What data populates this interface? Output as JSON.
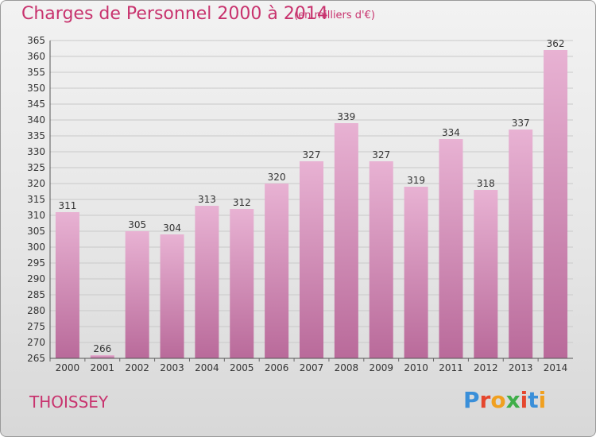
{
  "header": {
    "title": "Charges de Personnel 2000 à 2014",
    "subtitle": "(en milliers d'€)"
  },
  "footer": {
    "commune": "THOISSEY",
    "logo_text": "Proxiti",
    "logo_colors": [
      "#3a8fd9",
      "#e5462d",
      "#f0a020",
      "#3fae49",
      "#e5462d",
      "#3a8fd9",
      "#f0a020"
    ]
  },
  "colors": {
    "bar_light": "#e8b2d3",
    "bar_dark": "#b96a9a",
    "accent": "#c8336e"
  },
  "chart_data": {
    "type": "bar",
    "title": "Charges de Personnel 2000 à 2014",
    "subtitle": "(en milliers d'€)",
    "categories": [
      "2000",
      "2001",
      "2002",
      "2003",
      "2004",
      "2005",
      "2006",
      "2007",
      "2008",
      "2009",
      "2010",
      "2011",
      "2012",
      "2013",
      "2014"
    ],
    "values": [
      311,
      266,
      305,
      304,
      313,
      312,
      320,
      327,
      339,
      327,
      319,
      334,
      318,
      337,
      362
    ],
    "ylim": [
      265,
      365
    ],
    "ytick_step": 5,
    "grid": true
  }
}
